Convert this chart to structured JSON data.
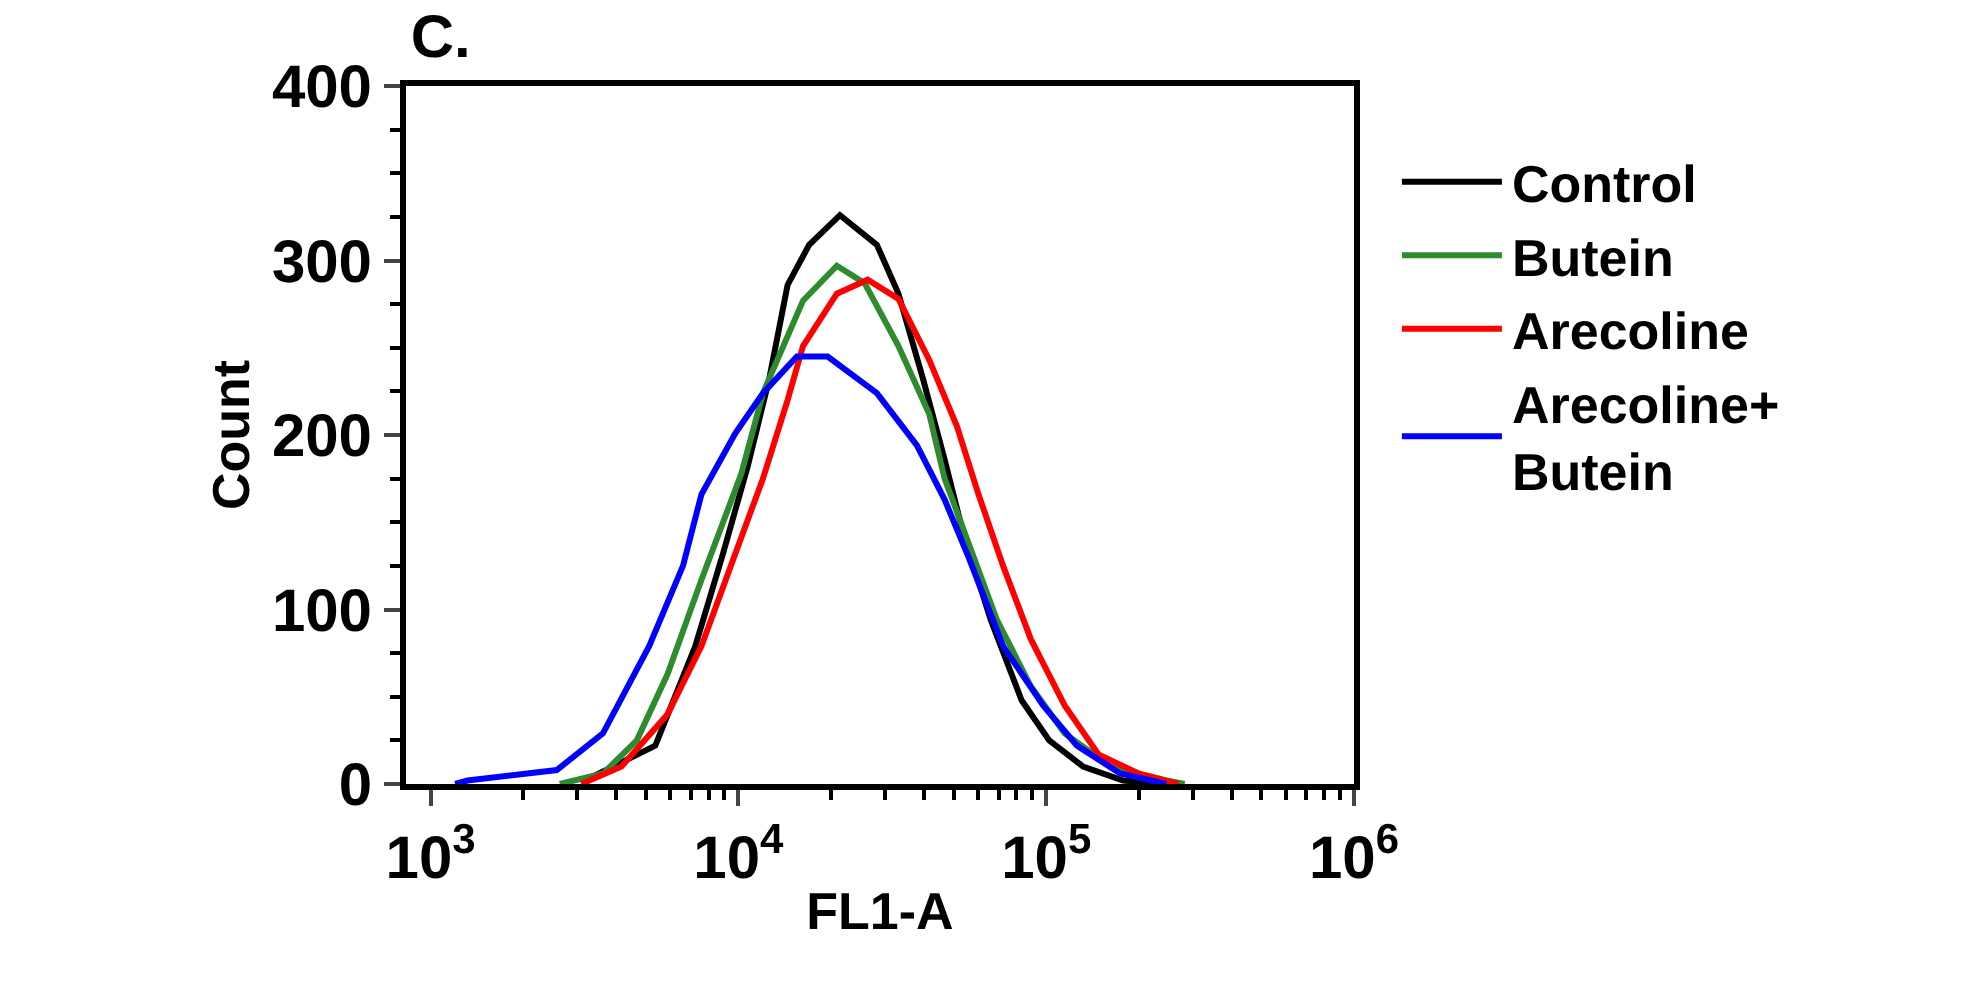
{
  "chart_data": {
    "type": "line",
    "title": "C.",
    "xlabel": "FL1-A",
    "ylabel": "Count",
    "log": "x",
    "legend": "right",
    "marker": "none",
    "line_style": "solid",
    "xlim": [
      832,
      1000000
    ],
    "xticks": [
      {
        "value": 1000,
        "label": "10$^{3}$"
      },
      {
        "value": 10000,
        "label": "10$^{4}$"
      },
      {
        "value": 100000,
        "label": "10$^{5}$"
      },
      {
        "value": 1000000,
        "label": "10$^{6}$"
      }
    ],
    "ylim": [
      0,
      400
    ],
    "yticks": [
      0,
      100,
      200,
      300,
      400
    ],
    "series": [
      {
        "name": "Control",
        "color": "#000000",
        "x": [
          3090,
          5370,
          7244,
          8913,
          10720,
          12590,
          14450,
          16980,
          21380,
          28180,
          33110,
          39810,
          46770,
          53700,
          66070,
          83180,
          102300,
          131800,
          177800,
          245500
        ],
        "values": [
          1,
          22,
          79,
          132,
          182,
          232,
          286,
          309,
          326,
          309,
          281,
          232,
          186,
          144,
          94,
          48,
          25,
          10,
          2,
          0
        ]
      },
      {
        "name": "Butein",
        "color": "#2e8b2e",
        "x": [
          2630,
          3631,
          4677,
          5888,
          7586,
          10230,
          12020,
          16220,
          20890,
          25700,
          33110,
          41690,
          46770,
          56230,
          69180,
          89130,
          114800,
          162200,
          245500,
          281800
        ],
        "values": [
          0,
          6,
          25,
          63,
          117,
          178,
          224,
          277,
          297,
          287,
          251,
          212,
          175,
          137,
          94,
          56,
          29,
          10,
          2,
          0
        ]
      },
      {
        "name": "Arecoline",
        "color": "#ff0000",
        "x": [
          3090,
          4169,
          5888,
          7586,
          9772,
          12020,
          14450,
          16220,
          20890,
          26300,
          33110,
          41690,
          51290,
          60260,
          72440,
          89130,
          114800,
          147900,
          199500,
          269200
        ],
        "values": [
          0,
          10,
          40,
          79,
          132,
          175,
          220,
          251,
          281,
          289,
          278,
          243,
          205,
          166,
          125,
          83,
          45,
          17,
          6,
          0
        ]
      },
      {
        "name": "Arecoline+\nButein",
        "color": "#0000ff",
        "x": [
          1202,
          1318,
          2570,
          3631,
          5129,
          6607,
          7586,
          9772,
          12020,
          15490,
          19500,
          28180,
          38020,
          46770,
          56230,
          72440,
          97720,
          125900,
          173800,
          245500
        ],
        "values": [
          0,
          2,
          8,
          29,
          79,
          125,
          166,
          201,
          224,
          245,
          245,
          224,
          194,
          163,
          129,
          79,
          45,
          22,
          6,
          0
        ]
      }
    ]
  }
}
